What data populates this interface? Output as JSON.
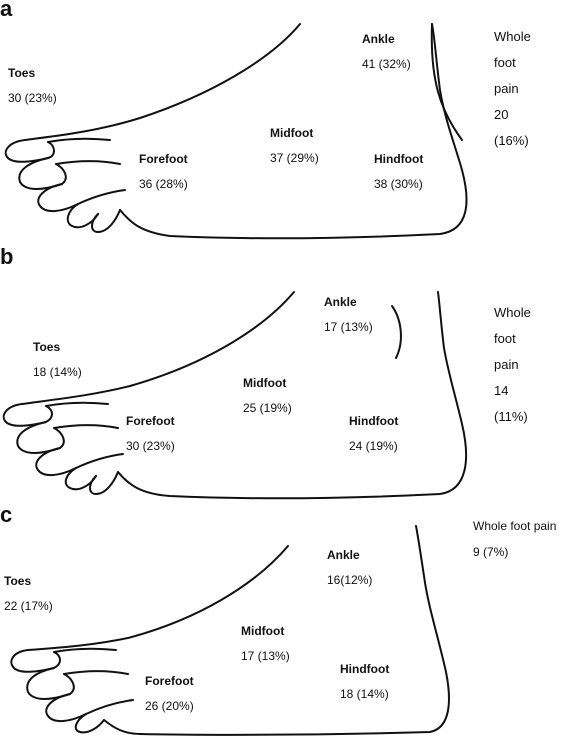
{
  "panels": [
    {
      "letter": "a",
      "toes": {
        "name": "Toes",
        "value": "30 (23%)"
      },
      "forefoot": {
        "name": "Forefoot",
        "value": "36 (28%)"
      },
      "midfoot": {
        "name": "Midfoot",
        "value": "37 (29%)"
      },
      "ankle": {
        "name": "Ankle",
        "value": "41 (32%)"
      },
      "hindfoot": {
        "name": "Hindfoot",
        "value": "38 (30%)"
      },
      "whole": {
        "line1": "Whole",
        "line2": "foot",
        "line3": "pain",
        "line4": "20",
        "line5": "(16%)"
      }
    },
    {
      "letter": "b",
      "toes": {
        "name": "Toes",
        "value": "18 (14%)"
      },
      "forefoot": {
        "name": "Forefoot",
        "value": "30 (23%)"
      },
      "midfoot": {
        "name": "Midfoot",
        "value": "25 (19%)"
      },
      "ankle": {
        "name": "Ankle",
        "value": "17 (13%)"
      },
      "hindfoot": {
        "name": "Hindfoot",
        "value": "24 (19%)"
      },
      "whole": {
        "line1": "Whole",
        "line2": "foot",
        "line3": "pain",
        "line4": "14",
        "line5": "(11%)"
      }
    },
    {
      "letter": "c",
      "toes": {
        "name": "Toes",
        "value": "22 (17%)"
      },
      "forefoot": {
        "name": "Forefoot",
        "value": "26 (20%)"
      },
      "midfoot": {
        "name": "Midfoot",
        "value": "17 (13%)"
      },
      "ankle": {
        "name": "Ankle",
        "value": "16(12%)"
      },
      "hindfoot": {
        "name": "Hindfoot",
        "value": "18 (14%)"
      },
      "whole": {
        "name": "Whole foot pain",
        "value": "9 (7%)"
      }
    }
  ]
}
